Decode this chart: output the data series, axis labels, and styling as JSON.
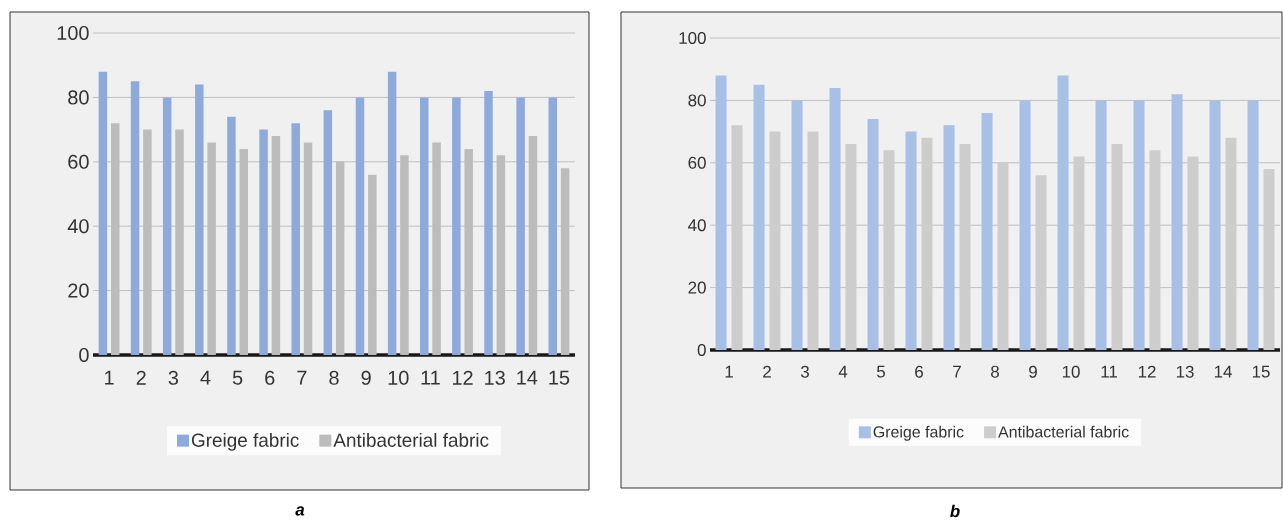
{
  "chart_data": [
    {
      "type": "bar",
      "categories": [
        "1",
        "2",
        "3",
        "4",
        "5",
        "6",
        "7",
        "8",
        "9",
        "10",
        "11",
        "12",
        "13",
        "14",
        "15"
      ],
      "series": [
        {
          "name": "Greige fabric",
          "color": "#8eaadb",
          "values": [
            88,
            85,
            80,
            84,
            74,
            70,
            72,
            76,
            80,
            88,
            80,
            80,
            82,
            80,
            80
          ]
        },
        {
          "name": "Antibacterial fabric",
          "color": "#bcbcbc",
          "values": [
            72,
            70,
            70,
            66,
            64,
            68,
            66,
            60,
            56,
            62,
            66,
            64,
            62,
            68,
            58
          ]
        }
      ],
      "ylim": [
        0,
        100
      ],
      "yticks": [
        0,
        20,
        40,
        60,
        80,
        100
      ],
      "grid": "y",
      "legend": "bottom",
      "annotations": [
        "a"
      ]
    },
    {
      "type": "bar",
      "categories": [
        "1",
        "2",
        "3",
        "4",
        "5",
        "6",
        "7",
        "8",
        "9",
        "10",
        "11",
        "12",
        "13",
        "14",
        "15"
      ],
      "series": [
        {
          "name": "Greige fabric",
          "color": "#a8bfe6",
          "values": [
            88,
            85,
            80,
            84,
            74,
            70,
            72,
            76,
            80,
            88,
            80,
            80,
            82,
            80,
            80
          ]
        },
        {
          "name": "Antibacterial fabric",
          "color": "#cdcdcd",
          "values": [
            72,
            70,
            70,
            66,
            64,
            68,
            66,
            60,
            56,
            62,
            66,
            64,
            62,
            68,
            58
          ]
        }
      ],
      "ylim": [
        0,
        100
      ],
      "yticks": [
        0,
        20,
        40,
        60,
        80,
        100
      ],
      "grid": "y",
      "legend": "bottom",
      "annotations": [
        "b"
      ]
    }
  ]
}
